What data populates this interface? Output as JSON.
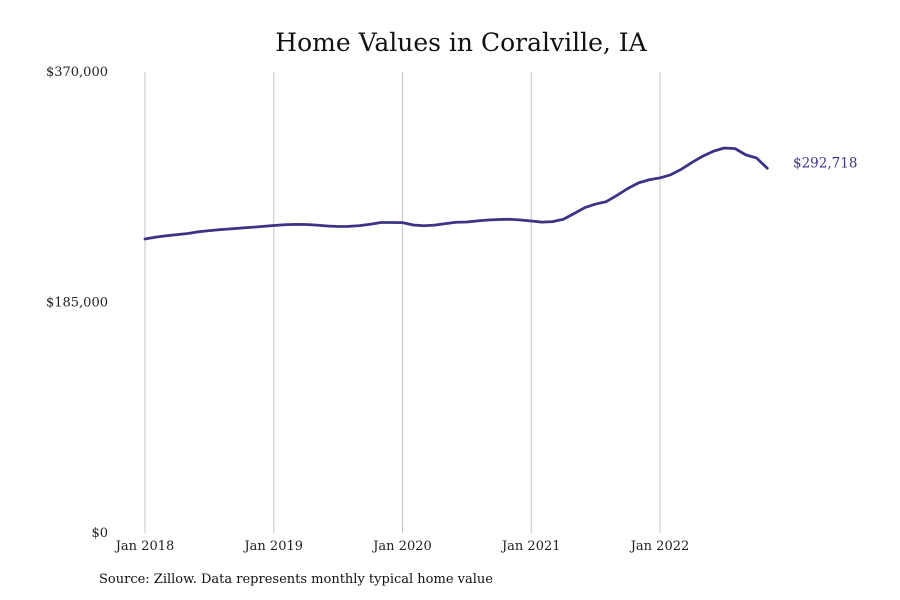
{
  "chart_data": {
    "type": "line",
    "title": "Home Values in Coralville, IA",
    "xlabel": "",
    "ylabel": "",
    "ylim": [
      0,
      370000
    ],
    "y_ticks": [
      "$0",
      "$185,000",
      "$370,000"
    ],
    "y_tick_values": [
      0,
      185000,
      370000
    ],
    "x_ticks": [
      "Jan 2018",
      "Jan 2019",
      "Jan 2020",
      "Jan 2021",
      "Jan 2022"
    ],
    "x_tick_index": [
      0,
      12,
      24,
      36,
      48
    ],
    "grid": "vertical",
    "line_color": "#3b3486",
    "end_label": "$292,718",
    "series": [
      {
        "values": [
          236000,
          237500,
          238600,
          239500,
          240400,
          241800,
          242700,
          243500,
          244100,
          244800,
          245400,
          246100,
          246800,
          247400,
          247700,
          247600,
          247100,
          246400,
          246000,
          246100,
          246700,
          247800,
          249200,
          249200,
          249100,
          247200,
          246600,
          247100,
          248300,
          249400,
          249600,
          250500,
          251200,
          251600,
          251800,
          251200,
          250400,
          249500,
          249900,
          251800,
          256400,
          261200,
          264000,
          266000,
          271000,
          276500,
          281000,
          283500,
          285000,
          287500,
          292000,
          297500,
          302500,
          306500,
          309000,
          308500,
          303500,
          301000,
          292718
        ]
      }
    ],
    "source": "Source: Zillow. Data represents monthly typical home value"
  }
}
